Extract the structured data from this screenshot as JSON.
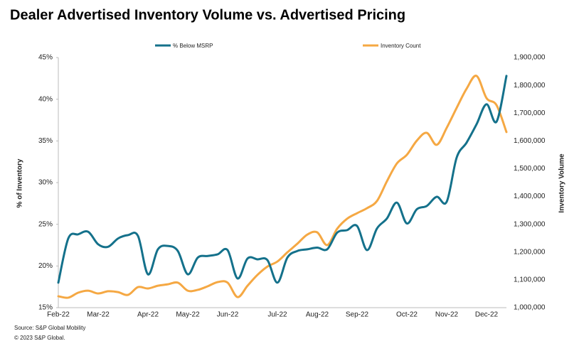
{
  "chart_data": {
    "type": "line",
    "title": "Dealer Advertised Inventory Volume vs. Advertised Pricing",
    "y_label": "% of Inventory",
    "y2_label": "Inventory Volume",
    "source": "Source: S&P Global Mobility",
    "copyright": "© 2023 S&P Global.",
    "legend": "top",
    "categories": [
      "Feb-22",
      null,
      null,
      null,
      "Mar-22",
      null,
      null,
      null,
      null,
      "Apr-22",
      null,
      null,
      null,
      "May-22",
      null,
      null,
      null,
      "Jun-22",
      null,
      null,
      null,
      null,
      "Jul-22",
      null,
      null,
      null,
      "Aug-22",
      null,
      null,
      null,
      "Sep-22",
      null,
      null,
      null,
      null,
      "Oct-22",
      null,
      null,
      null,
      "Nov-22",
      null,
      null,
      null,
      "Dec-22",
      null,
      null
    ],
    "series": [
      {
        "name": "% Below MSRP",
        "color": "#14718b",
        "values": [
          18.0,
          23.3,
          23.8,
          24.1,
          22.6,
          22.3,
          23.3,
          23.7,
          23.6,
          19.0,
          22.0,
          22.4,
          21.8,
          19.0,
          21.0,
          21.2,
          21.4,
          21.9,
          18.5,
          20.9,
          20.8,
          20.7,
          18.0,
          21.0,
          21.8,
          22.0,
          22.2,
          22.0,
          24.0,
          24.3,
          24.8,
          21.9,
          24.5,
          25.7,
          27.6,
          25.1,
          26.8,
          27.2,
          28.3,
          27.7,
          33.0,
          34.8,
          37.0,
          39.4,
          37.3,
          42.8
        ]
      },
      {
        "name": "Inventory Count",
        "color": "#f5a843",
        "axis": "y2",
        "values": [
          1041000,
          1036000,
          1054000,
          1061000,
          1051000,
          1059000,
          1056000,
          1046000,
          1074000,
          1069000,
          1079000,
          1084000,
          1090000,
          1061000,
          1064000,
          1077000,
          1092000,
          1090000,
          1038000,
          1079000,
          1118000,
          1148000,
          1166000,
          1199000,
          1230000,
          1263000,
          1271000,
          1225000,
          1284000,
          1320000,
          1340000,
          1358000,
          1384000,
          1455000,
          1519000,
          1550000,
          1601000,
          1629000,
          1586000,
          1647000,
          1719000,
          1788000,
          1834000,
          1754000,
          1729000,
          1632000
        ]
      }
    ],
    "ylim": [
      15,
      45
    ],
    "yticks": [
      {
        "value": 15,
        "label": "15%"
      },
      {
        "value": 20,
        "label": "20%"
      },
      {
        "value": 25,
        "label": "25%"
      },
      {
        "value": 30,
        "label": "30%"
      },
      {
        "value": 35,
        "label": "35%"
      },
      {
        "value": 40,
        "label": "40%"
      },
      {
        "value": 45,
        "label": "45%"
      }
    ],
    "y2lim": [
      1000000,
      1900000
    ],
    "y2ticks": [
      {
        "value": 1000000,
        "label": "1,000,000"
      },
      {
        "value": 1100000,
        "label": "1,100,000"
      },
      {
        "value": 1200000,
        "label": "1,200,000"
      },
      {
        "value": 1300000,
        "label": "1,300,000"
      },
      {
        "value": 1400000,
        "label": "1,400,000"
      },
      {
        "value": 1500000,
        "label": "1,500,000"
      },
      {
        "value": 1600000,
        "label": "1,600,000"
      },
      {
        "value": 1700000,
        "label": "1,700,000"
      },
      {
        "value": 1800000,
        "label": "1,800,000"
      },
      {
        "value": 1900000,
        "label": "1,900,000"
      }
    ]
  }
}
